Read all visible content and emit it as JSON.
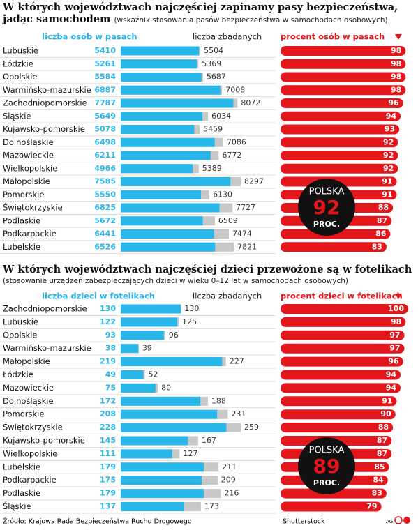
{
  "chart_data": [
    {
      "type": "bar",
      "title": "W których województwach najczęściej zapinamy pasy bezpieczeństwa, jadąc samochodem",
      "subtitle": "(wskaźnik stosowania pasów bezpieczeństwa w samochodach osobowych)",
      "categories": [
        "Lubuskie",
        "Łódzkie",
        "Opolskie",
        "Warmińsko-mazurskie",
        "Zachodniopomorskie",
        "Śląskie",
        "Kujawsko-pomorskie",
        "Dolnośląskie",
        "Mazowieckie",
        "Wielkopolskie",
        "Małopolskie",
        "Pomorskie",
        "Świętokrzyskie",
        "Podlaskie",
        "Podkarpackie",
        "Lubelskie"
      ],
      "series": [
        {
          "name": "liczba osób w pasach",
          "color": "#29b6e8",
          "values": [
            5410,
            5261,
            5584,
            6887,
            7787,
            5649,
            5078,
            6498,
            6211,
            4966,
            7585,
            5550,
            6825,
            5672,
            6441,
            6526
          ]
        },
        {
          "name": "liczba zbadanych",
          "color": "#c8c8c8",
          "values": [
            5504,
            5369,
            5687,
            7008,
            8072,
            6034,
            5459,
            7086,
            6772,
            5389,
            8297,
            6130,
            7727,
            6509,
            7474,
            7821
          ]
        },
        {
          "name": "procent osób w pasach",
          "color": "#e3161b",
          "values": [
            98,
            98,
            98,
            98,
            96,
            94,
            93,
            92,
            92,
            92,
            91,
            91,
            88,
            87,
            86,
            83
          ]
        }
      ],
      "total": {
        "label": "POLSKA",
        "value": 92,
        "unit": "PROC."
      }
    },
    {
      "type": "bar",
      "title": "W których województwach najczęściej dzieci przewożone są w fotelikach",
      "subtitle": "(stosowanie urządzeń zabezpieczających dzieci w wieku 0–12 lat w samochodach osobowych)",
      "categories": [
        "Zachodniopomorskie",
        "Lubuskie",
        "Opolskie",
        "Warmińsko-mazurskie",
        "Małopolskie",
        "Łódzkie",
        "Mazowieckie",
        "Dolnośląskie",
        "Pomorskie",
        "Świętokrzyskie",
        "Kujawsko-pomorskie",
        "Wielkopolskie",
        "Lubelskie",
        "Podkarpackie",
        "Podlaskie",
        "Śląskie"
      ],
      "series": [
        {
          "name": "liczba dzieci w fotelikach",
          "color": "#29b6e8",
          "values": [
            130,
            122,
            93,
            38,
            219,
            49,
            75,
            172,
            208,
            228,
            145,
            111,
            179,
            175,
            179,
            137
          ]
        },
        {
          "name": "liczba zbadanych",
          "color": "#c8c8c8",
          "values": [
            130,
            125,
            96,
            39,
            227,
            52,
            80,
            188,
            231,
            259,
            167,
            127,
            211,
            209,
            216,
            173
          ]
        },
        {
          "name": "procent dzieci w fotelikach",
          "color": "#e3161b",
          "values": [
            100,
            98,
            97,
            97,
            96,
            94,
            94,
            91,
            90,
            88,
            87,
            87,
            85,
            84,
            83,
            79
          ]
        }
      ],
      "total": {
        "label": "POLSKA",
        "value": 89,
        "unit": "PROC."
      }
    }
  ],
  "footer": {
    "source": "Źródło: Krajowa Rada Bezpieczeństwa Ruchu Drogowego",
    "credit": "Shutterstock",
    "author": "AG"
  }
}
